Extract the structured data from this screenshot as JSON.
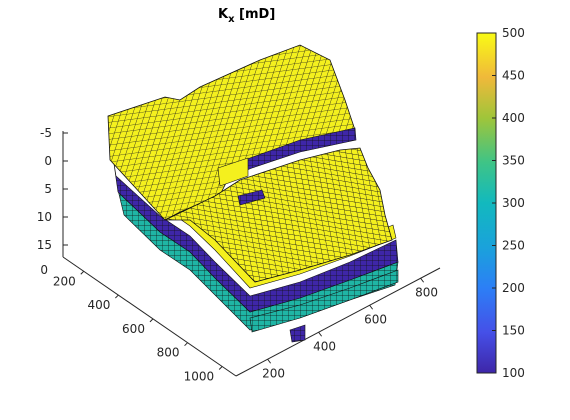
{
  "chart_data": {
    "type": "3d-surface",
    "title_main": "K",
    "title_sub": "x",
    "title_rest": " [mD]",
    "x_ticks": [
      "200",
      "400",
      "600",
      "800"
    ],
    "y_ticks": [
      "200",
      "400",
      "600",
      "800",
      "1000"
    ],
    "z_ticks": [
      "-5",
      "0",
      "5",
      "10",
      "15"
    ],
    "z_extra_tick": "0",
    "colorbar": {
      "ticks": [
        "500",
        "450",
        "400",
        "350",
        "300",
        "250",
        "200",
        "150",
        "100"
      ],
      "min": 100,
      "max": 500,
      "colormap": "parula"
    },
    "layer_colors": {
      "top": "#f4f01e",
      "mid": "#3e26a8",
      "low": "#1fb5a5"
    }
  }
}
